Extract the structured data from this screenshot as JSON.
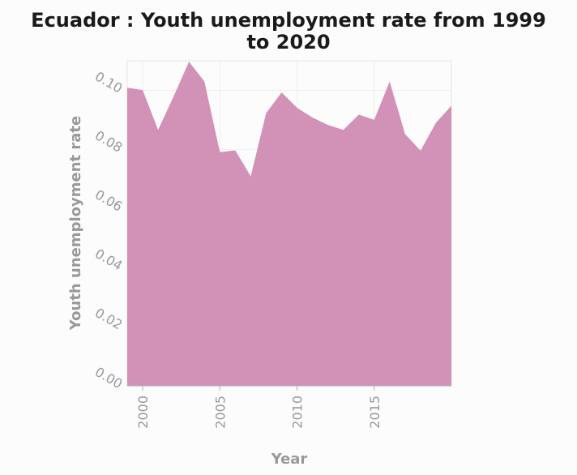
{
  "chart_data": {
    "type": "area",
    "title": "Ecuador : Youth unemployment rate from 1999 to 2020",
    "title_lines": [
      "Ecuador : Youth unemployment rate from 1999",
      "to 2020"
    ],
    "xlabel": "Year",
    "ylabel": "Youth unemployment rate",
    "xlim": [
      1999,
      2020
    ],
    "ylim": [
      0,
      0.11
    ],
    "x_ticks": [
      2000,
      2005,
      2010,
      2015
    ],
    "x_tick_labels": [
      "2000",
      "2005",
      "2010",
      "2015"
    ],
    "y_ticks": [
      0,
      0.02,
      0.04,
      0.06,
      0.08,
      0.1
    ],
    "y_tick_labels": [
      "0.00",
      "0.02",
      "0.04",
      "0.06",
      "0.08",
      "0.10"
    ],
    "grid": true,
    "legend": "none",
    "fill_color": "#d291b6",
    "series": [
      {
        "x": [
          1999,
          2000,
          2001,
          2002,
          2003,
          2004,
          2005,
          2006,
          2007,
          2008,
          2009,
          2010,
          2011,
          2012,
          2013,
          2014,
          2015,
          2016,
          2017,
          2018,
          2019,
          2020
        ],
        "values": [
          0.1009,
          0.1001,
          0.0866,
          0.0979,
          0.1097,
          0.103,
          0.0791,
          0.0797,
          0.0709,
          0.0923,
          0.0993,
          0.0941,
          0.0908,
          0.0883,
          0.0866,
          0.0918,
          0.09,
          0.103,
          0.0852,
          0.0796,
          0.089,
          0.0948
        ]
      }
    ]
  }
}
